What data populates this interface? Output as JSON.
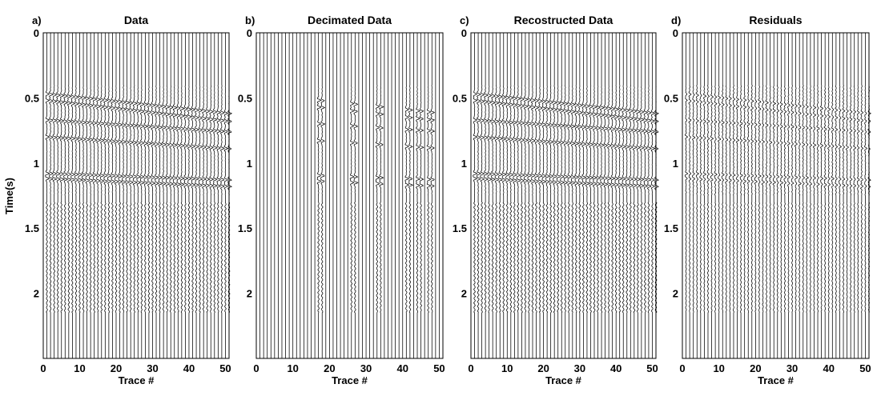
{
  "figure": {
    "ylabel": "Time(s)"
  },
  "chart_data": [
    {
      "type": "seismic-wiggle",
      "panel_label": "a)",
      "title": "Data",
      "xlabel": "Trace #",
      "xticks": [
        0,
        10,
        20,
        30,
        40,
        50
      ],
      "yticks": [
        0,
        0.5,
        1,
        1.5,
        2
      ],
      "y_tick_side": "left",
      "xlim": [
        0,
        51
      ],
      "ylim": [
        0,
        2.5
      ],
      "n_traces": 51,
      "live_traces": "all",
      "events": [
        {
          "t0": 0.47,
          "t_end": 0.62
        },
        {
          "t0": 0.52,
          "t_end": 0.68
        },
        {
          "t0": 0.67,
          "t_end": 0.76
        },
        {
          "t0": 0.8,
          "t_end": 0.89
        },
        {
          "t0": 1.08,
          "t_end": 1.13
        },
        {
          "t0": 1.12,
          "t_end": 1.18
        }
      ],
      "noise_band_s": [
        1.3,
        2.15
      ]
    },
    {
      "type": "seismic-wiggle",
      "panel_label": "b)",
      "title": "Decimated Data",
      "xlabel": "Trace #",
      "xticks": [
        0,
        10,
        20,
        30,
        40,
        50
      ],
      "yticks": [
        0,
        0.5,
        1,
        1.5,
        2
      ],
      "y_tick_side": "left",
      "xlim": [
        0,
        51
      ],
      "ylim": [
        0,
        2.5
      ],
      "n_traces": 51,
      "live_traces": [
        17,
        18,
        26,
        27,
        33,
        34,
        41,
        42,
        44,
        45,
        47,
        48
      ],
      "events": [
        {
          "t0": 0.47,
          "t_end": 0.62
        },
        {
          "t0": 0.52,
          "t_end": 0.68
        },
        {
          "t0": 0.67,
          "t_end": 0.76
        },
        {
          "t0": 0.8,
          "t_end": 0.89
        },
        {
          "t0": 1.08,
          "t_end": 1.13
        },
        {
          "t0": 1.12,
          "t_end": 1.18
        }
      ],
      "noise_band_s": [
        1.3,
        2.15
      ]
    },
    {
      "type": "seismic-wiggle",
      "panel_label": "c)",
      "title": "Recostructed Data",
      "xlabel": "Trace #",
      "xticks": [
        0,
        10,
        20,
        30,
        40,
        50
      ],
      "yticks": [
        0,
        0.5,
        1,
        1.5,
        2
      ],
      "y_tick_side": "left",
      "xlim": [
        0,
        51
      ],
      "ylim": [
        0,
        2.5
      ],
      "n_traces": 51,
      "live_traces": "all",
      "events": [
        {
          "t0": 0.47,
          "t_end": 0.62
        },
        {
          "t0": 0.52,
          "t_end": 0.68
        },
        {
          "t0": 0.67,
          "t_end": 0.76
        },
        {
          "t0": 0.8,
          "t_end": 0.89
        },
        {
          "t0": 1.08,
          "t_end": 1.13
        },
        {
          "t0": 1.12,
          "t_end": 1.18
        }
      ],
      "noise_band_s": [
        1.3,
        2.15
      ]
    },
    {
      "type": "seismic-wiggle",
      "panel_label": "d)",
      "title": "Residuals",
      "xlabel": "Trace #",
      "xticks": [
        0,
        10,
        20,
        30,
        40,
        50
      ],
      "yticks": [
        0,
        0.5,
        1,
        1.5,
        2
      ],
      "y_tick_side": "left",
      "xlim": [
        0,
        51
      ],
      "ylim": [
        0,
        2.5
      ],
      "n_traces": 51,
      "live_traces": "all",
      "events": [
        {
          "t0": 0.47,
          "t_end": 0.62
        },
        {
          "t0": 0.52,
          "t_end": 0.68
        },
        {
          "t0": 0.67,
          "t_end": 0.76
        },
        {
          "t0": 0.8,
          "t_end": 0.89
        },
        {
          "t0": 1.08,
          "t_end": 1.13
        },
        {
          "t0": 1.12,
          "t_end": 1.18
        }
      ],
      "noise_band_s": [
        1.3,
        2.15
      ]
    }
  ]
}
